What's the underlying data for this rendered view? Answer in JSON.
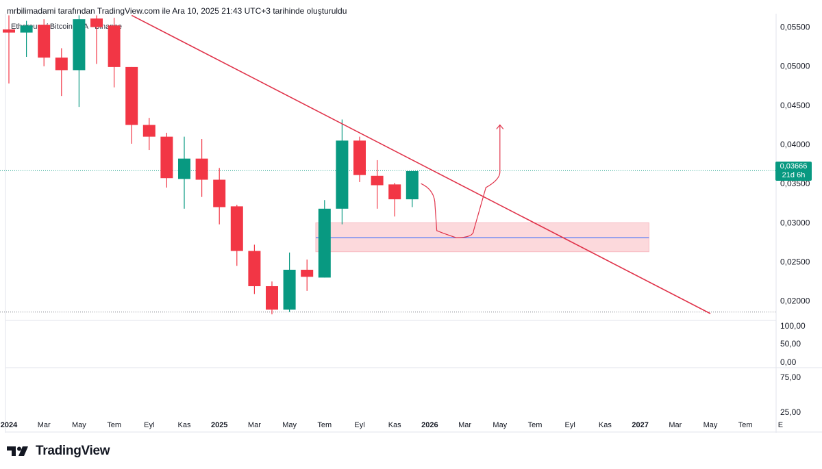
{
  "header": {
    "caption": "mrbilimadami tarafından TradingView.com ile Ara 10, 2025 21:43 UTC+3 tarihinde oluşturuldu",
    "symbol": "Ethereum / Bitcoin · 1A · Binance"
  },
  "footer": {
    "brand": "TradingView"
  },
  "colors": {
    "up": "#089981",
    "down": "#f23645",
    "trendline": "#e0334a",
    "zone": "#fcd9dc",
    "zone_line": "#2962ff"
  },
  "current_price": {
    "value": "0,03666",
    "countdown": "21d 6h"
  },
  "chart_data": {
    "type": "candlestick",
    "title": "Ethereum / Bitcoin · 1A · Binance",
    "interval": "1 month",
    "ylim": [
      0.0177,
      0.0561
    ],
    "y_ticks": [
      {
        "value": 0.055,
        "label": "0,05500"
      },
      {
        "value": 0.05,
        "label": "0,05000"
      },
      {
        "value": 0.045,
        "label": "0,04500"
      },
      {
        "value": 0.04,
        "label": "0,04000"
      },
      {
        "value": 0.035,
        "label": "0,03500"
      },
      {
        "value": 0.03,
        "label": "0,03000"
      },
      {
        "value": 0.025,
        "label": "0,02500"
      },
      {
        "value": 0.02,
        "label": "0,02000"
      }
    ],
    "sub_pane_1_labels": [
      "100,00",
      "50,00",
      "0,00"
    ],
    "sub_pane_2_labels": [
      "75,00",
      "25,00"
    ],
    "x_labels": [
      {
        "label": "2024",
        "index": 0,
        "bold": true
      },
      {
        "label": "Mar",
        "index": 2,
        "bold": false
      },
      {
        "label": "May",
        "index": 4,
        "bold": false
      },
      {
        "label": "Tem",
        "index": 6,
        "bold": false
      },
      {
        "label": "Eyl",
        "index": 8,
        "bold": false
      },
      {
        "label": "Kas",
        "index": 10,
        "bold": false
      },
      {
        "label": "2025",
        "index": 12,
        "bold": true
      },
      {
        "label": "Mar",
        "index": 14,
        "bold": false
      },
      {
        "label": "May",
        "index": 16,
        "bold": false
      },
      {
        "label": "Tem",
        "index": 18,
        "bold": false
      },
      {
        "label": "Eyl",
        "index": 20,
        "bold": false
      },
      {
        "label": "Kas",
        "index": 22,
        "bold": false
      },
      {
        "label": "2026",
        "index": 24,
        "bold": true
      },
      {
        "label": "Mar",
        "index": 26,
        "bold": false
      },
      {
        "label": "May",
        "index": 28,
        "bold": false
      },
      {
        "label": "Tem",
        "index": 30,
        "bold": false
      },
      {
        "label": "Eyl",
        "index": 32,
        "bold": false
      },
      {
        "label": "Kas",
        "index": 34,
        "bold": false
      },
      {
        "label": "2027",
        "index": 36,
        "bold": true
      },
      {
        "label": "Mar",
        "index": 38,
        "bold": false
      },
      {
        "label": "May",
        "index": 40,
        "bold": false
      },
      {
        "label": "Tem",
        "index": 42,
        "bold": false
      },
      {
        "label": "E",
        "index": 44,
        "bold": false
      }
    ],
    "candles": [
      {
        "o": 0.0547,
        "h": 0.0565,
        "l": 0.0478,
        "c": 0.0543
      },
      {
        "o": 0.0543,
        "h": 0.0558,
        "l": 0.0512,
        "c": 0.0552
      },
      {
        "o": 0.0553,
        "h": 0.056,
        "l": 0.05,
        "c": 0.0511
      },
      {
        "o": 0.0511,
        "h": 0.0523,
        "l": 0.0462,
        "c": 0.0495
      },
      {
        "o": 0.0495,
        "h": 0.0565,
        "l": 0.0448,
        "c": 0.056
      },
      {
        "o": 0.0561,
        "h": 0.0565,
        "l": 0.0503,
        "c": 0.055
      },
      {
        "o": 0.0552,
        "h": 0.0562,
        "l": 0.0473,
        "c": 0.0499
      },
      {
        "o": 0.0499,
        "h": 0.0499,
        "l": 0.0401,
        "c": 0.0425
      },
      {
        "o": 0.0425,
        "h": 0.0434,
        "l": 0.0393,
        "c": 0.041
      },
      {
        "o": 0.041,
        "h": 0.0415,
        "l": 0.0345,
        "c": 0.0357
      },
      {
        "o": 0.0356,
        "h": 0.041,
        "l": 0.0318,
        "c": 0.0382
      },
      {
        "o": 0.0382,
        "h": 0.0407,
        "l": 0.0333,
        "c": 0.0355
      },
      {
        "o": 0.0355,
        "h": 0.037,
        "l": 0.0298,
        "c": 0.032
      },
      {
        "o": 0.0321,
        "h": 0.0323,
        "l": 0.0245,
        "c": 0.0264
      },
      {
        "o": 0.0264,
        "h": 0.0272,
        "l": 0.0209,
        "c": 0.0219
      },
      {
        "o": 0.0219,
        "h": 0.0225,
        "l": 0.0183,
        "c": 0.0189
      },
      {
        "o": 0.0189,
        "h": 0.0262,
        "l": 0.0186,
        "c": 0.024
      },
      {
        "o": 0.024,
        "h": 0.0253,
        "l": 0.0213,
        "c": 0.0231
      },
      {
        "o": 0.023,
        "h": 0.0329,
        "l": 0.023,
        "c": 0.0318
      },
      {
        "o": 0.0318,
        "h": 0.0432,
        "l": 0.0298,
        "c": 0.0405
      },
      {
        "o": 0.0405,
        "h": 0.041,
        "l": 0.0352,
        "c": 0.0361
      },
      {
        "o": 0.036,
        "h": 0.038,
        "l": 0.0318,
        "c": 0.0348
      },
      {
        "o": 0.0349,
        "h": 0.0351,
        "l": 0.0308,
        "c": 0.033
      },
      {
        "o": 0.033,
        "h": 0.0366,
        "l": 0.032,
        "c": 0.0366
      }
    ],
    "annotations": {
      "trendline": {
        "start_index": 7.0,
        "start_value": 0.0565,
        "end_index": 40.0,
        "end_value": 0.0184
      },
      "support_zone": {
        "start_index": 17.5,
        "end_index": 36.5,
        "top": 0.03,
        "bottom": 0.0263,
        "mid": 0.0281
      },
      "current_price_line": 0.03666,
      "low_line": 0.0186,
      "projection_path": [
        {
          "i": 23.5,
          "v": 0.035
        },
        {
          "i": 24.3,
          "v": 0.0322
        },
        {
          "i": 24.4,
          "v": 0.029
        },
        {
          "i": 25.5,
          "v": 0.0281
        },
        {
          "i": 26.5,
          "v": 0.0284
        },
        {
          "i": 27.2,
          "v": 0.0345
        },
        {
          "i": 28.0,
          "v": 0.0357
        },
        {
          "i": 28.0,
          "v": 0.0425
        }
      ]
    }
  }
}
